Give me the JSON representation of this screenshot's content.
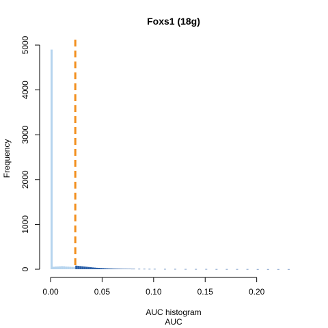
{
  "chart_data": {
    "type": "bar",
    "title": "Foxs1 (18g)",
    "xlabel": "AUC histogram",
    "xlabel2": "AUC",
    "ylabel": "Frequency",
    "xlim": [
      0,
      0.24
    ],
    "ylim": [
      0,
      5000
    ],
    "xticks": [
      {
        "value": 0.0,
        "label": "0.00"
      },
      {
        "value": 0.05,
        "label": "0.05"
      },
      {
        "value": 0.1,
        "label": "0.10"
      },
      {
        "value": 0.15,
        "label": "0.15"
      },
      {
        "value": 0.2,
        "label": "0.20"
      }
    ],
    "yticks": [
      {
        "value": 0,
        "label": "0"
      },
      {
        "value": 1000,
        "label": "1000"
      },
      {
        "value": 2000,
        "label": "2000"
      },
      {
        "value": 3000,
        "label": "3000"
      },
      {
        "value": 4000,
        "label": "4000"
      },
      {
        "value": 5000,
        "label": "5000"
      }
    ],
    "threshold": 0.024,
    "bin_width": 0.002,
    "colors": {
      "below_threshold": "#b6d4ee",
      "above_threshold": "#2a5fa8",
      "threshold_line": "#f28e1b"
    },
    "bins_x": [
      0.0,
      0.002,
      0.004,
      0.006,
      0.008,
      0.01,
      0.012,
      0.014,
      0.016,
      0.018,
      0.02,
      0.022,
      0.024,
      0.026,
      0.028,
      0.03,
      0.032,
      0.034,
      0.036,
      0.038,
      0.04,
      0.042,
      0.044,
      0.046,
      0.048,
      0.05,
      0.052,
      0.054,
      0.056,
      0.058,
      0.06,
      0.062,
      0.064,
      0.066,
      0.068,
      0.07,
      0.072,
      0.074,
      0.076,
      0.078,
      0.08,
      0.085,
      0.09,
      0.095,
      0.1,
      0.11,
      0.12,
      0.13,
      0.14,
      0.15,
      0.16,
      0.17,
      0.18,
      0.19,
      0.2,
      0.21,
      0.22,
      0.23
    ],
    "values": [
      4900,
      55,
      60,
      62,
      65,
      68,
      66,
      60,
      58,
      55,
      52,
      50,
      80,
      75,
      70,
      65,
      60,
      55,
      50,
      45,
      40,
      36,
      32,
      30,
      27,
      25,
      22,
      20,
      18,
      17,
      15,
      14,
      13,
      12,
      11,
      10,
      10,
      9,
      9,
      8,
      8,
      7,
      7,
      6,
      6,
      5,
      5,
      4,
      4,
      4,
      3,
      3,
      3,
      3,
      2,
      2,
      2,
      2
    ]
  }
}
